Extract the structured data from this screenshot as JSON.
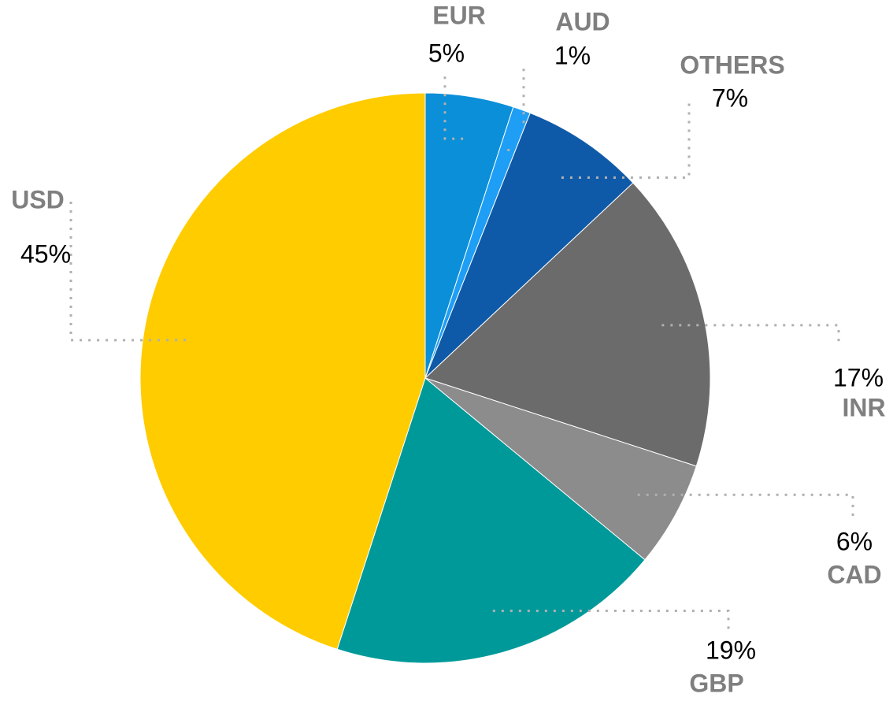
{
  "chart_data": {
    "type": "pie",
    "categories": [
      "EUR",
      "AUD",
      "OTHERS",
      "INR",
      "CAD",
      "GBP",
      "USD"
    ],
    "values": [
      5,
      1,
      7,
      17,
      6,
      19,
      45
    ],
    "value_labels": [
      "5%",
      "1%",
      "7%",
      "17%",
      "6%",
      "19%",
      "45%"
    ],
    "colors": [
      "#0a8fd8",
      "#1e9ef5",
      "#0f5aa8",
      "#6b6b6b",
      "#8c8c8c",
      "#009999",
      "#ffcc00"
    ]
  }
}
